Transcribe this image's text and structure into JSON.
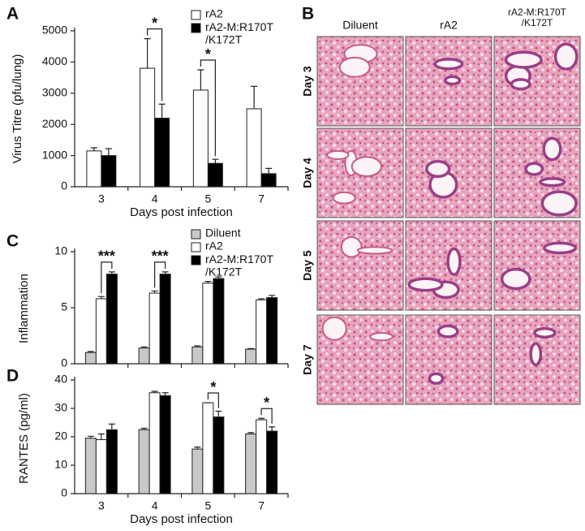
{
  "chart_data": [
    {
      "type": "bar",
      "panel": "A",
      "ylabel": "Virus Titre (pfu/lung)",
      "xlabel": "Days post infection",
      "categories": [
        "3",
        "4",
        "5",
        "7"
      ],
      "series": [
        {
          "name": "rA2",
          "color": "#ffffff",
          "values": [
            1150,
            3800,
            3100,
            2500
          ],
          "errors": [
            100,
            950,
            650,
            720
          ]
        },
        {
          "name": "rA2-M:R170T /K172T",
          "color": "#000000",
          "values": [
            1000,
            2200,
            750,
            420
          ],
          "errors": [
            220,
            450,
            130,
            170
          ]
        }
      ],
      "ylim": [
        0,
        5000
      ],
      "yticks": [
        0,
        1000,
        2000,
        3000,
        4000,
        5000
      ],
      "legend": "top-right",
      "significance": [
        {
          "category": 1,
          "label": "*"
        },
        {
          "category": 2,
          "label": "*"
        }
      ]
    },
    {
      "type": "bar",
      "panel": "C",
      "ylabel": "Inflammation",
      "categories": [
        null,
        null,
        null,
        null
      ],
      "series": [
        {
          "name": "Diluent",
          "color": "#c8c8c8",
          "values": [
            1.0,
            1.4,
            1.5,
            1.3
          ],
          "errors": [
            0.1,
            0.1,
            0.1,
            0.05
          ]
        },
        {
          "name": "rA2",
          "color": "#ffffff",
          "values": [
            5.8,
            6.3,
            7.2,
            5.7
          ],
          "errors": [
            0.2,
            0.2,
            0.15,
            0.1
          ]
        },
        {
          "name": "rA2-M:R170T /K172T",
          "color": "#000000",
          "values": [
            8.0,
            8.0,
            7.6,
            5.9
          ],
          "errors": [
            0.2,
            0.2,
            0.15,
            0.2
          ]
        }
      ],
      "ylim": [
        0,
        10
      ],
      "yticks": [
        0,
        5,
        10
      ],
      "legend": "top-right",
      "significance": [
        {
          "category": 0,
          "label": "***"
        },
        {
          "category": 1,
          "label": "***"
        }
      ]
    },
    {
      "type": "bar",
      "panel": "D",
      "ylabel": "RANTES (pg/ml)",
      "xlabel": "Days post infection",
      "categories": [
        "3",
        "4",
        "5",
        "7"
      ],
      "series": [
        {
          "name": "Diluent",
          "color": "#c8c8c8",
          "values": [
            19.5,
            22.5,
            15.7,
            21
          ],
          "errors": [
            0.7,
            0.5,
            0.7,
            0.5
          ]
        },
        {
          "name": "rA2",
          "color": "#ffffff",
          "values": [
            19,
            35.5,
            32,
            26
          ],
          "errors": [
            2,
            0.5,
            0,
            0.5
          ]
        },
        {
          "name": "rA2-M:R170T /K172T",
          "color": "#000000",
          "values": [
            22.5,
            34.5,
            27,
            22
          ],
          "errors": [
            2,
            1,
            2,
            1.5
          ]
        }
      ],
      "ylim": [
        0,
        40
      ],
      "yticks": [
        0,
        10,
        20,
        30,
        40
      ],
      "significance": [
        {
          "category": 2,
          "label": "*"
        },
        {
          "category": 3,
          "label": "*"
        }
      ]
    }
  ],
  "panel_b": {
    "label": "B",
    "columns": [
      "Diluent",
      "rA2",
      "rA2-M:R170T /K172T"
    ],
    "rows": [
      "Day 3",
      "Day 4",
      "Day 5",
      "Day 7"
    ]
  }
}
